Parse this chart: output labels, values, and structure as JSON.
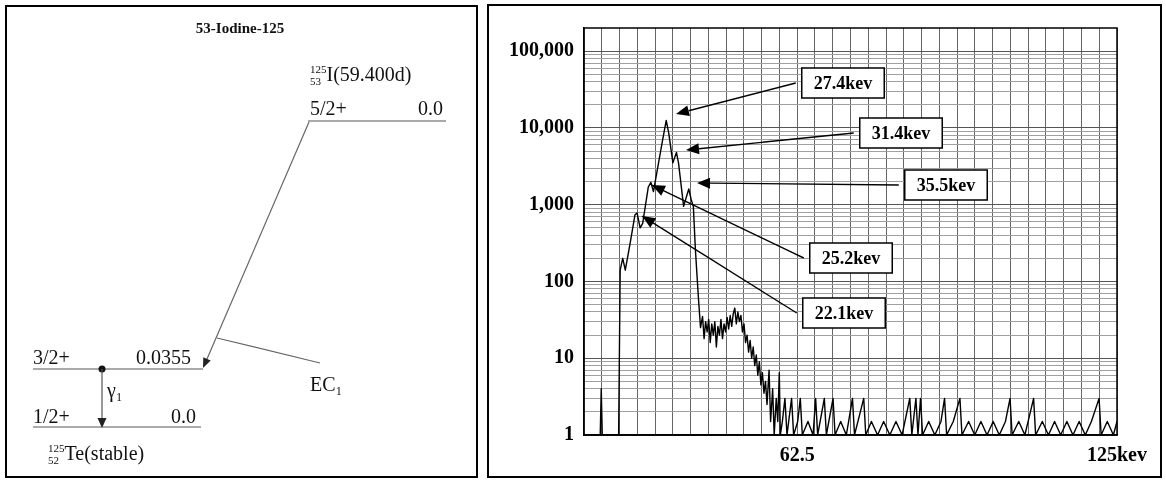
{
  "chart_data": [
    {
      "type": "other",
      "title": "53-Iodine-125",
      "annotations": [
        "$^{125}$$_{53}$I(59.400d)",
        "5/2+",
        "0.0",
        "3/2+",
        "0.0355",
        "EC₁",
        "γ₁",
        "1/2+",
        "0.0",
        "$^{125}$$_{52}$Te(stable)"
      ]
    },
    {
      "type": "line",
      "color": "#000000",
      "marker": "none",
      "line_style": "solid",
      "log": "y",
      "grid": true,
      "x": [
        20.83,
        24.0,
        24.2,
        24.4,
        27.6,
        27.9,
        28.4,
        28.9,
        29.9,
        30.8,
        31.2,
        31.8,
        32.3,
        33.4,
        33.9,
        34.4,
        35.4,
        36.2,
        36.9,
        37.4,
        38.2,
        38.9,
        39.3,
        40.3,
        41.3,
        41.8,
        42.2,
        42.6,
        43.2,
        43.6,
        44.0,
        44.3,
        44.6,
        44.9,
        45.2,
        45.5,
        45.8,
        46.1,
        46.4,
        46.7,
        47.0,
        47.3,
        47.6,
        47.9,
        48.2,
        48.5,
        48.8,
        49.1,
        49.4,
        49.7,
        50.0,
        50.3,
        50.6,
        50.9,
        51.2,
        51.5,
        51.8,
        52.1,
        52.4,
        52.7,
        53.0,
        53.3,
        53.6,
        53.9,
        54.2,
        54.5,
        54.8,
        55.1,
        55.4,
        55.7,
        56.0,
        56.3,
        56.6,
        57.0,
        57.3,
        57.7,
        58.0,
        58.4,
        58.7,
        59.0,
        59.2,
        59.6,
        60.1,
        60.5,
        61.4,
        61.8,
        62.6,
        63.1,
        63.5,
        64.6,
        65.6,
        66.1,
        66.5,
        67.8,
        68.2,
        69.5,
        69.9,
        71.0,
        72.1,
        73.3,
        73.7,
        75.5,
        75.9,
        77.0,
        78.2,
        79.4,
        80.6,
        81.8,
        83.0,
        84.5,
        84.9,
        85.7,
        86.1,
        86.6,
        87.0,
        88.2,
        89.4,
        90.6,
        91.3,
        91.7,
        93.0,
        94.3,
        94.7,
        96.0,
        97.2,
        98.4,
        99.6,
        100.8,
        102.0,
        103.2,
        104.1,
        104.5,
        105.8,
        107.0,
        108.7,
        109.1,
        110.4,
        111.6,
        112.8,
        114.0,
        115.2,
        116.4,
        117.6,
        118.8,
        120.0,
        121.5,
        121.9,
        123.1,
        124.3,
        125
      ],
      "values": [
        1,
        1,
        4,
        1,
        1,
        140,
        200,
        140,
        330,
        740,
        780,
        500,
        570,
        1700,
        1950,
        1480,
        3500,
        7000,
        12500,
        8500,
        3500,
        4800,
        3500,
        950,
        1600,
        1150,
        950,
        260,
        60,
        25,
        35,
        18,
        30,
        22,
        32,
        16,
        28,
        20,
        30,
        14,
        26,
        20,
        32,
        18,
        28,
        22,
        34,
        24,
        36,
        26,
        38,
        45,
        28,
        40,
        30,
        36,
        22,
        28,
        16,
        20,
        12,
        17,
        10,
        14,
        8,
        11,
        6,
        9,
        4.5,
        6.5,
        3.5,
        5,
        2.5,
        7,
        1.5,
        4,
        1,
        3,
        1.5,
        6.5,
        1,
        1.5,
        3,
        1,
        3,
        1,
        1.5,
        3,
        1,
        1.5,
        1,
        3,
        1,
        3,
        1,
        3,
        1,
        1.5,
        1,
        3,
        1,
        3,
        1,
        1.5,
        1,
        1.5,
        1,
        1.5,
        1,
        3,
        1,
        3,
        1,
        3,
        1,
        1.5,
        1,
        1.5,
        3,
        1,
        1.5,
        3,
        1,
        1.5,
        1,
        1.5,
        1,
        1.5,
        1,
        1.5,
        3,
        1,
        1.5,
        1,
        3,
        1,
        1.5,
        1,
        1.5,
        1,
        1.5,
        1,
        1.5,
        1,
        1.5,
        3,
        1,
        1.5,
        1,
        1.5
      ],
      "xlim": [
        20.83,
        125
      ],
      "xticks": [
        {
          "value": 24.31,
          "label": null
        },
        {
          "value": 27.78,
          "label": null
        },
        {
          "value": 31.25,
          "label": null
        },
        {
          "value": 34.72,
          "label": null
        },
        {
          "value": 38.19,
          "label": null
        },
        {
          "value": 41.67,
          "label": null
        },
        {
          "value": 45.14,
          "label": null
        },
        {
          "value": 48.61,
          "label": null
        },
        {
          "value": 52.08,
          "label": null
        },
        {
          "value": 55.56,
          "label": null
        },
        {
          "value": 59.03,
          "label": null
        },
        62.5,
        {
          "value": 65.97,
          "label": null
        },
        {
          "value": 69.44,
          "label": null
        },
        {
          "value": 72.92,
          "label": null
        },
        {
          "value": 76.39,
          "label": null
        },
        {
          "value": 79.86,
          "label": null
        },
        {
          "value": 83.33,
          "label": null
        },
        {
          "value": 86.81,
          "label": null
        },
        {
          "value": 90.28,
          "label": null
        },
        {
          "value": 93.75,
          "label": null
        },
        {
          "value": 97.22,
          "label": null
        },
        {
          "value": 100.69,
          "label": null
        },
        {
          "value": 104.17,
          "label": null
        },
        {
          "value": 107.64,
          "label": null
        },
        {
          "value": 111.11,
          "label": null
        },
        {
          "value": 114.58,
          "label": null
        },
        {
          "value": 118.06,
          "label": null
        },
        {
          "value": 121.53,
          "label": null
        },
        {
          "value": 125,
          "label": "125kev"
        }
      ],
      "ylim": [
        1,
        200000
      ],
      "yticks": [
        1,
        {
          "value": 2,
          "label": null
        },
        {
          "value": 3,
          "label": null
        },
        {
          "value": 4,
          "label": null
        },
        {
          "value": 5,
          "label": null
        },
        {
          "value": 6,
          "label": null
        },
        {
          "value": 7,
          "label": null
        },
        {
          "value": 8,
          "label": null
        },
        {
          "value": 9,
          "label": null
        },
        10,
        {
          "value": 20,
          "label": null
        },
        {
          "value": 30,
          "label": null
        },
        {
          "value": 40,
          "label": null
        },
        {
          "value": 50,
          "label": null
        },
        {
          "value": 60,
          "label": null
        },
        {
          "value": 70,
          "label": null
        },
        {
          "value": 80,
          "label": null
        },
        {
          "value": 90,
          "label": null
        },
        100,
        {
          "value": 200,
          "label": null
        },
        {
          "value": 300,
          "label": null
        },
        {
          "value": 400,
          "label": null
        },
        {
          "value": 500,
          "label": null
        },
        {
          "value": 600,
          "label": null
        },
        {
          "value": 700,
          "label": null
        },
        {
          "value": 800,
          "label": null
        },
        {
          "value": 900,
          "label": null
        },
        {
          "value": 1000,
          "label": "1,000"
        },
        {
          "value": 2000,
          "label": null
        },
        {
          "value": 3000,
          "label": null
        },
        {
          "value": 4000,
          "label": null
        },
        {
          "value": 5000,
          "label": null
        },
        {
          "value": 6000,
          "label": null
        },
        {
          "value": 7000,
          "label": null
        },
        {
          "value": 8000,
          "label": null
        },
        {
          "value": 9000,
          "label": null
        },
        {
          "value": 10000,
          "label": "10,000"
        },
        {
          "value": 20000,
          "label": null
        },
        {
          "value": 30000,
          "label": null
        },
        {
          "value": 40000,
          "label": null
        },
        {
          "value": 50000,
          "label": null
        },
        {
          "value": 60000,
          "label": null
        },
        {
          "value": 70000,
          "label": null
        },
        {
          "value": 80000,
          "label": null
        },
        {
          "value": 90000,
          "label": null
        },
        {
          "value": 100000,
          "label": "100,000"
        }
      ],
      "annotations": [
        "27.4kev",
        "31.4kev",
        "35.5kev",
        {
          "text": "25.2kev",
          "x": 34.1,
          "y": 1800
        },
        {
          "text": "22.1kev",
          "x": 32.2,
          "y": 710
        }
      ]
    }
  ]
}
